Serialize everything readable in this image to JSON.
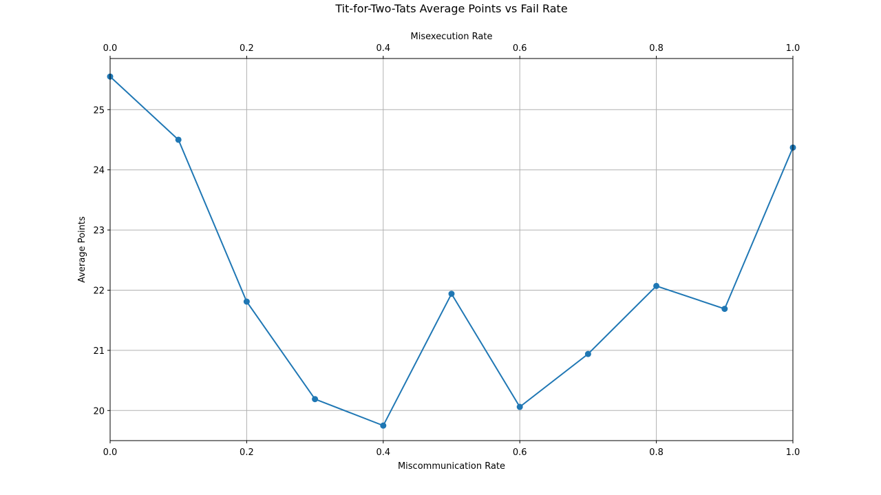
{
  "chart_data": {
    "type": "line",
    "title": "Tit-for-Two-Tats Average Points vs Fail Rate",
    "xlabel": "Miscommunication Rate",
    "x2label": "Misexecution Rate",
    "ylabel": "Average Points",
    "xlim": [
      0.0,
      1.0
    ],
    "ylim": [
      19.5,
      25.85
    ],
    "xticks": [
      0.0,
      0.2,
      0.4,
      0.6,
      0.8,
      1.0
    ],
    "xtick_labels": [
      "0.0",
      "0.2",
      "0.4",
      "0.6",
      "0.8",
      "1.0"
    ],
    "yticks": [
      20,
      21,
      22,
      23,
      24,
      25
    ],
    "ytick_labels": [
      "20",
      "21",
      "22",
      "23",
      "24",
      "25"
    ],
    "grid": true,
    "color": "#1f77b4",
    "series": [
      {
        "x": [
          0.0,
          0.1,
          0.2,
          0.3,
          0.4,
          0.5,
          0.6,
          0.7,
          0.8,
          0.9,
          1.0
        ],
        "y": [
          25.55,
          24.5,
          21.81,
          20.19,
          19.75,
          21.94,
          20.06,
          20.94,
          22.07,
          21.69,
          24.37
        ]
      }
    ]
  }
}
